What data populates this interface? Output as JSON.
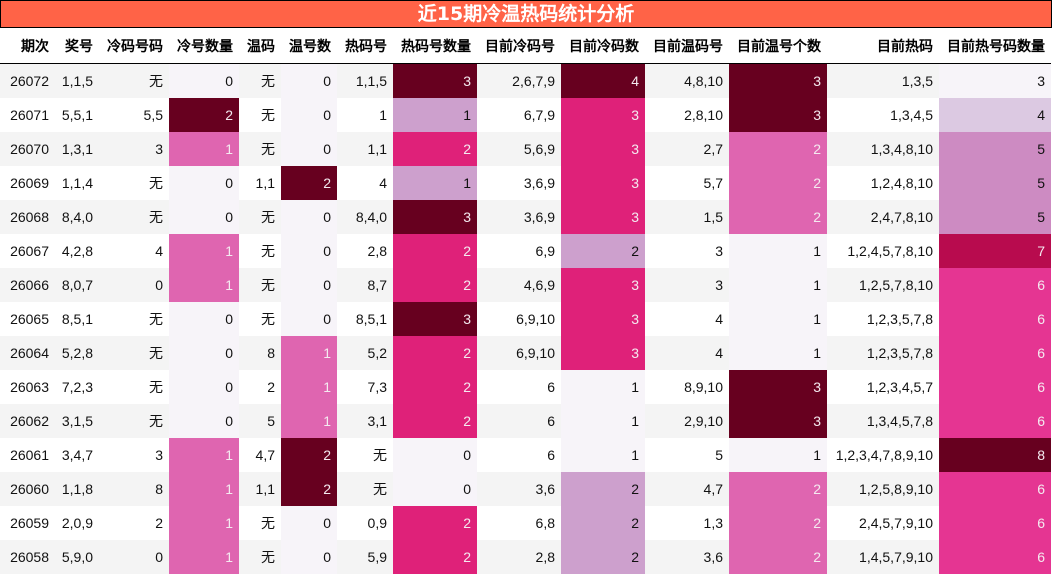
{
  "title": "近15期冷温热码统计分析",
  "columns": [
    "期次",
    "奖号",
    "冷码号码",
    "冷号数量",
    "温码",
    "温号数",
    "热码号",
    "热码号数量",
    "目前冷码号",
    "目前冷码数",
    "目前温码号",
    "目前温号个数",
    "目前热码",
    "目前热号码数量"
  ],
  "heat_columns": [
    3,
    5,
    7,
    9,
    11,
    13
  ],
  "colormap": [
    "#f7f4f9",
    "#e7e1ef",
    "#d4b9da",
    "#c994c7",
    "#df65b0",
    "#e7298a",
    "#ce1256",
    "#980043",
    "#67001f"
  ],
  "rows": [
    [
      "26072",
      "1,1,5",
      "无",
      "0",
      "无",
      "0",
      "1,1,5",
      "3",
      "2,6,7,9",
      "4",
      "4,8,10",
      "3",
      "1,3,5",
      "3"
    ],
    [
      "26071",
      "5,5,1",
      "5,5",
      "2",
      "无",
      "0",
      "1",
      "1",
      "6,7,9",
      "3",
      "2,8,10",
      "3",
      "1,3,4,5",
      "4"
    ],
    [
      "26070",
      "1,3,1",
      "3",
      "1",
      "无",
      "0",
      "1,1",
      "2",
      "5,6,9",
      "3",
      "2,7",
      "2",
      "1,3,4,8,10",
      "5"
    ],
    [
      "26069",
      "1,1,4",
      "无",
      "0",
      "1,1",
      "2",
      "4",
      "1",
      "3,6,9",
      "3",
      "5,7",
      "2",
      "1,2,4,8,10",
      "5"
    ],
    [
      "26068",
      "8,4,0",
      "无",
      "0",
      "无",
      "0",
      "8,4,0",
      "3",
      "3,6,9",
      "3",
      "1,5",
      "2",
      "2,4,7,8,10",
      "5"
    ],
    [
      "26067",
      "4,2,8",
      "4",
      "1",
      "无",
      "0",
      "2,8",
      "2",
      "6,9",
      "2",
      "3",
      "1",
      "1,2,4,5,7,8,10",
      "7"
    ],
    [
      "26066",
      "8,0,7",
      "0",
      "1",
      "无",
      "0",
      "8,7",
      "2",
      "4,6,9",
      "3",
      "3",
      "1",
      "1,2,5,7,8,10",
      "6"
    ],
    [
      "26065",
      "8,5,1",
      "无",
      "0",
      "无",
      "0",
      "8,5,1",
      "3",
      "6,9,10",
      "3",
      "4",
      "1",
      "1,2,3,5,7,8",
      "6"
    ],
    [
      "26064",
      "5,2,8",
      "无",
      "0",
      "8",
      "1",
      "5,2",
      "2",
      "6,9,10",
      "3",
      "4",
      "1",
      "1,2,3,5,7,8",
      "6"
    ],
    [
      "26063",
      "7,2,3",
      "无",
      "0",
      "2",
      "1",
      "7,3",
      "2",
      "6",
      "1",
      "8,9,10",
      "3",
      "1,2,3,4,5,7",
      "6"
    ],
    [
      "26062",
      "3,1,5",
      "无",
      "0",
      "5",
      "1",
      "3,1",
      "2",
      "6",
      "1",
      "2,9,10",
      "3",
      "1,3,4,5,7,8",
      "6"
    ],
    [
      "26061",
      "3,4,7",
      "3",
      "1",
      "4,7",
      "2",
      "无",
      "0",
      "6",
      "1",
      "5",
      "1",
      "1,2,3,4,7,8,9,10",
      "8"
    ],
    [
      "26060",
      "1,1,8",
      "8",
      "1",
      "1,1",
      "2",
      "无",
      "0",
      "3,6",
      "2",
      "4,7",
      "2",
      "1,2,5,8,9,10",
      "6"
    ],
    [
      "26059",
      "2,0,9",
      "2",
      "1",
      "无",
      "0",
      "0,9",
      "2",
      "6,8",
      "2",
      "1,3",
      "2",
      "2,4,5,7,9,10",
      "6"
    ],
    [
      "26058",
      "5,9,0",
      "0",
      "1",
      "无",
      "0",
      "5,9",
      "2",
      "2,8",
      "2",
      "3,6",
      "2",
      "1,4,5,7,9,10",
      "6"
    ]
  ]
}
